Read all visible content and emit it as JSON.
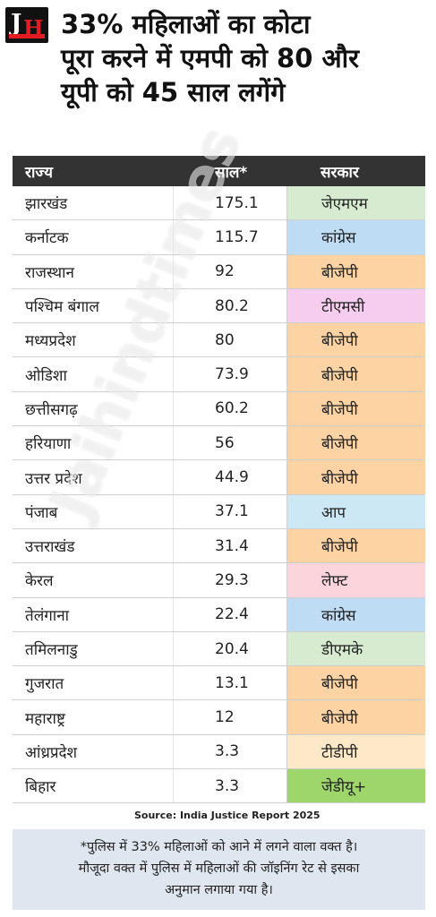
{
  "title_lines": [
    "33% महिलाओं का कोटा",
    "पूरा करने में एमपी को 80 और",
    "यूपी को 45 साल लगेंगे"
  ],
  "table": {
    "headers": [
      "राज्य",
      "साल*",
      "सरकार"
    ],
    "rows": [
      {
        "state": "झारखंड",
        "years": "175.1",
        "party": "जेएमएम",
        "color": "#d6ebcf"
      },
      {
        "state": "कर्नाटक",
        "years": "115.7",
        "party": "कांग्रेस",
        "color": "#bfdcf5"
      },
      {
        "state": "राजस्थान",
        "years": "92",
        "party": "बीजेपी",
        "color": "#fdd3a4"
      },
      {
        "state": "पश्चिम बंगाल",
        "years": "80.2",
        "party": "टीएमसी",
        "color": "#f6cdee"
      },
      {
        "state": "मध्यप्रदेश",
        "years": "80",
        "party": "बीजेपी",
        "color": "#fdd3a4"
      },
      {
        "state": "ओडिशा",
        "years": "73.9",
        "party": "बीजेपी",
        "color": "#fdd3a4"
      },
      {
        "state": "छत्तीसगढ़",
        "years": "60.2",
        "party": "बीजेपी",
        "color": "#fdd3a4"
      },
      {
        "state": "हरियाणा",
        "years": "56",
        "party": "बीजेपी",
        "color": "#fdd3a4"
      },
      {
        "state": "उत्तर प्रदेश",
        "years": "44.9",
        "party": "बीजेपी",
        "color": "#fdd3a4"
      },
      {
        "state": "पंजाब",
        "years": "37.1",
        "party": "आप",
        "color": "#cde8f5"
      },
      {
        "state": "उत्तराखंड",
        "years": "31.4",
        "party": "बीजेपी",
        "color": "#fdd3a4"
      },
      {
        "state": "केरल",
        "years": "29.3",
        "party": "लेफ्ट",
        "color": "#fcd5dc"
      },
      {
        "state": "तेलंगाना",
        "years": "22.4",
        "party": "कांग्रेस",
        "color": "#bfdcf5"
      },
      {
        "state": "तमिलनाडु",
        "years": "20.4",
        "party": "डीएमके",
        "color": "#d6ebcf"
      },
      {
        "state": "गुजरात",
        "years": "13.1",
        "party": "बीजेपी",
        "color": "#fdd3a4"
      },
      {
        "state": "महाराष्ट्र",
        "years": "12",
        "party": "बीजेपी",
        "color": "#fdd3a4"
      },
      {
        "state": "आंध्रप्रदेश",
        "years": "3.3",
        "party": "टीडीपी",
        "color": "#fde9c8"
      },
      {
        "state": "बिहार",
        "years": "3.3",
        "party": "जेडीयू+",
        "color": "#9ed66b"
      }
    ]
  },
  "watermark": "Jaihindtimes",
  "source": "Source: India Justice Report 2025",
  "footnote_lines": [
    "*पुलिस में 33% महिलाओं को आने में लगने वाला वक्त है।",
    "मौजूदा वक्त में पुलिस में महिलाओं की जॉइनिंग रेट से इसका",
    "अनुमान लगाया गया है।"
  ]
}
